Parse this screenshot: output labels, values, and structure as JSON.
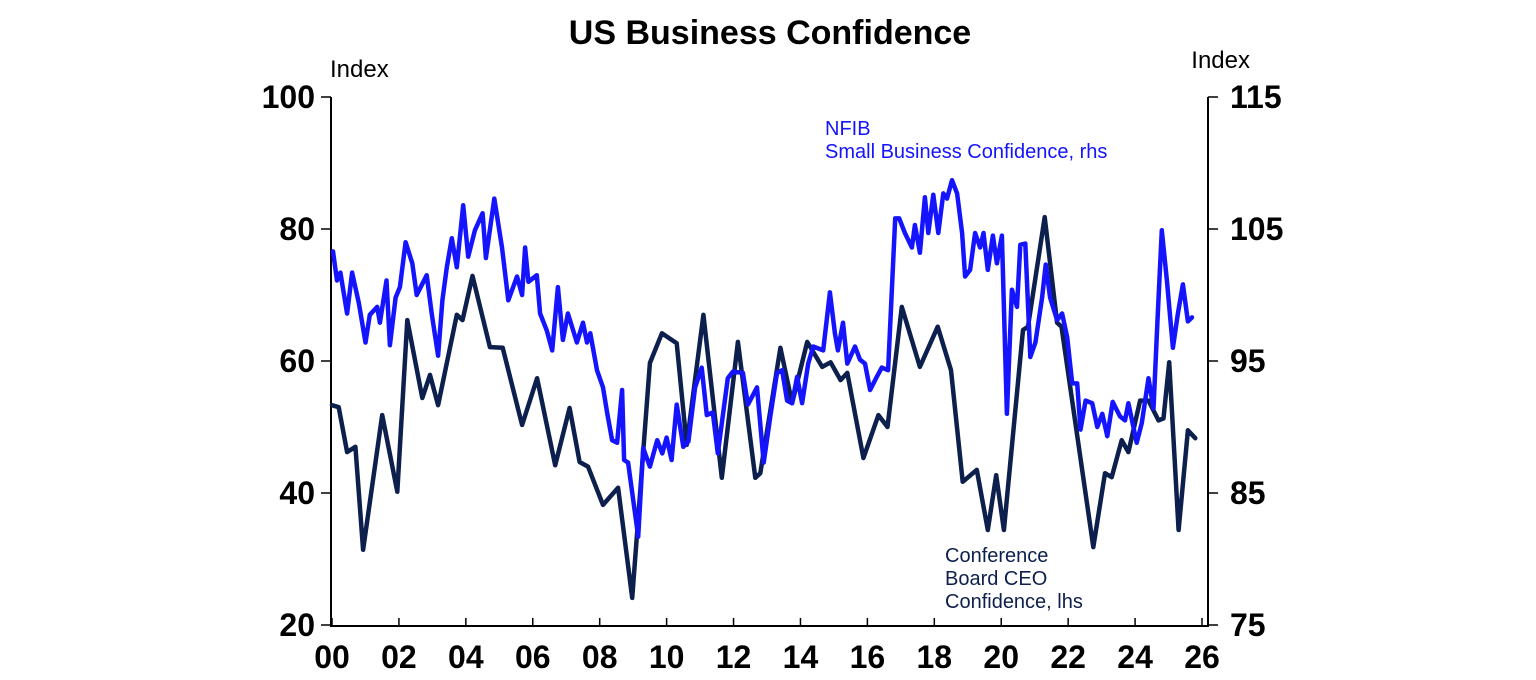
{
  "chart_data": {
    "type": "line",
    "title": "US Business Confidence",
    "ylabel_left": "Index",
    "ylabel_right": "Index",
    "xlim": [
      2000,
      2026
    ],
    "ylim_left": [
      20,
      100
    ],
    "ylim_right": [
      75,
      115
    ],
    "x_ticks": [
      2000,
      2002,
      2004,
      2006,
      2008,
      2010,
      2012,
      2014,
      2016,
      2018,
      2020,
      2022,
      2024,
      2026
    ],
    "x_tick_labels": [
      "00",
      "02",
      "04",
      "06",
      "08",
      "10",
      "12",
      "14",
      "16",
      "18",
      "20",
      "22",
      "24",
      "26"
    ],
    "y_left_ticks": [
      20,
      40,
      60,
      80,
      100
    ],
    "y_right_ticks": [
      75,
      85,
      95,
      105,
      115
    ],
    "grid": false,
    "series": [
      {
        "name": "NFIB Small Business Confidence, rhs",
        "label_lines": [
          "NFIB",
          "Small Business Confidence, rhs"
        ],
        "axis": "right",
        "color": "#1414ff",
        "points": [
          [
            2000.03,
            103.3
          ],
          [
            2000.15,
            101.1
          ],
          [
            2000.25,
            101.7
          ],
          [
            2000.45,
            98.6
          ],
          [
            2000.6,
            101.7
          ],
          [
            2000.8,
            99.4
          ],
          [
            2001.0,
            96.4
          ],
          [
            2001.13,
            98.5
          ],
          [
            2001.35,
            99.1
          ],
          [
            2001.43,
            97.9
          ],
          [
            2001.63,
            101.1
          ],
          [
            2001.73,
            96.2
          ],
          [
            2001.9,
            99.8
          ],
          [
            2002.03,
            100.6
          ],
          [
            2002.2,
            104.0
          ],
          [
            2002.4,
            102.4
          ],
          [
            2002.53,
            100.0
          ],
          [
            2002.83,
            101.5
          ],
          [
            2002.98,
            98.6
          ],
          [
            2003.17,
            95.4
          ],
          [
            2003.3,
            99.6
          ],
          [
            2003.43,
            102.1
          ],
          [
            2003.58,
            104.3
          ],
          [
            2003.73,
            102.1
          ],
          [
            2003.92,
            106.8
          ],
          [
            2004.07,
            102.9
          ],
          [
            2004.27,
            104.9
          ],
          [
            2004.5,
            106.2
          ],
          [
            2004.6,
            102.8
          ],
          [
            2004.85,
            107.3
          ],
          [
            2005.08,
            103.6
          ],
          [
            2005.27,
            99.6
          ],
          [
            2005.53,
            101.4
          ],
          [
            2005.68,
            100.0
          ],
          [
            2005.77,
            103.6
          ],
          [
            2005.87,
            101.0
          ],
          [
            2006.12,
            101.5
          ],
          [
            2006.22,
            98.6
          ],
          [
            2006.42,
            97.3
          ],
          [
            2006.58,
            95.8
          ],
          [
            2006.75,
            100.6
          ],
          [
            2006.9,
            96.6
          ],
          [
            2007.05,
            98.6
          ],
          [
            2007.32,
            96.4
          ],
          [
            2007.5,
            97.9
          ],
          [
            2007.62,
            96.4
          ],
          [
            2007.72,
            97.1
          ],
          [
            2007.92,
            94.3
          ],
          [
            2008.1,
            93.0
          ],
          [
            2008.22,
            91.1
          ],
          [
            2008.37,
            89.0
          ],
          [
            2008.52,
            88.8
          ],
          [
            2008.67,
            92.8
          ],
          [
            2008.73,
            87.5
          ],
          [
            2008.85,
            87.3
          ],
          [
            2009.15,
            81.7
          ],
          [
            2009.3,
            88.4
          ],
          [
            2009.5,
            87.0
          ],
          [
            2009.72,
            89.0
          ],
          [
            2009.87,
            88.0
          ],
          [
            2010.0,
            89.2
          ],
          [
            2010.15,
            87.5
          ],
          [
            2010.3,
            91.7
          ],
          [
            2010.5,
            88.5
          ],
          [
            2010.65,
            88.9
          ],
          [
            2010.85,
            93.0
          ],
          [
            2011.05,
            94.5
          ],
          [
            2011.2,
            90.9
          ],
          [
            2011.38,
            91.1
          ],
          [
            2011.53,
            88.0
          ],
          [
            2011.83,
            93.7
          ],
          [
            2011.98,
            94.2
          ],
          [
            2012.28,
            94.1
          ],
          [
            2012.43,
            91.7
          ],
          [
            2012.7,
            93.0
          ],
          [
            2012.9,
            87.3
          ],
          [
            2013.1,
            90.8
          ],
          [
            2013.3,
            94.1
          ],
          [
            2013.45,
            94.3
          ],
          [
            2013.6,
            92.0
          ],
          [
            2013.75,
            91.8
          ],
          [
            2013.9,
            93.8
          ],
          [
            2014.05,
            91.8
          ],
          [
            2014.23,
            94.8
          ],
          [
            2014.38,
            96.1
          ],
          [
            2014.68,
            95.8
          ],
          [
            2014.88,
            100.2
          ],
          [
            2015.03,
            97.1
          ],
          [
            2015.12,
            95.8
          ],
          [
            2015.27,
            97.9
          ],
          [
            2015.4,
            94.8
          ],
          [
            2015.63,
            96.1
          ],
          [
            2015.78,
            95.1
          ],
          [
            2015.93,
            94.8
          ],
          [
            2016.08,
            92.8
          ],
          [
            2016.28,
            93.8
          ],
          [
            2016.43,
            94.5
          ],
          [
            2016.62,
            94.3
          ],
          [
            2016.83,
            105.8
          ],
          [
            2016.95,
            105.8
          ],
          [
            2017.12,
            104.7
          ],
          [
            2017.33,
            103.6
          ],
          [
            2017.42,
            105.3
          ],
          [
            2017.57,
            103.2
          ],
          [
            2017.72,
            107.4
          ],
          [
            2017.82,
            104.7
          ],
          [
            2017.97,
            107.6
          ],
          [
            2018.12,
            104.7
          ],
          [
            2018.27,
            107.7
          ],
          [
            2018.38,
            107.3
          ],
          [
            2018.53,
            108.7
          ],
          [
            2018.68,
            107.7
          ],
          [
            2018.83,
            104.7
          ],
          [
            2018.92,
            101.4
          ],
          [
            2019.07,
            101.9
          ],
          [
            2019.22,
            104.7
          ],
          [
            2019.37,
            103.6
          ],
          [
            2019.47,
            104.7
          ],
          [
            2019.6,
            101.9
          ],
          [
            2019.75,
            104.5
          ],
          [
            2019.87,
            102.4
          ],
          [
            2020.02,
            104.5
          ],
          [
            2020.17,
            91.0
          ],
          [
            2020.32,
            100.4
          ],
          [
            2020.47,
            99.1
          ],
          [
            2020.57,
            103.8
          ],
          [
            2020.72,
            103.9
          ],
          [
            2020.87,
            95.3
          ],
          [
            2021.02,
            96.4
          ],
          [
            2021.22,
            99.8
          ],
          [
            2021.33,
            102.3
          ],
          [
            2021.46,
            99.8
          ],
          [
            2021.67,
            98.1
          ],
          [
            2021.82,
            98.6
          ],
          [
            2021.97,
            96.8
          ],
          [
            2022.12,
            93.3
          ],
          [
            2022.27,
            93.3
          ],
          [
            2022.37,
            89.8
          ],
          [
            2022.52,
            92.0
          ],
          [
            2022.72,
            91.8
          ],
          [
            2022.87,
            90.0
          ],
          [
            2023.02,
            91.0
          ],
          [
            2023.17,
            89.3
          ],
          [
            2023.33,
            91.9
          ],
          [
            2023.55,
            90.8
          ],
          [
            2023.7,
            90.5
          ],
          [
            2023.8,
            91.8
          ],
          [
            2024.05,
            88.8
          ],
          [
            2024.2,
            90.3
          ],
          [
            2024.4,
            93.7
          ],
          [
            2024.55,
            91.4
          ],
          [
            2024.67,
            98.1
          ],
          [
            2024.8,
            104.9
          ],
          [
            2024.95,
            101.1
          ],
          [
            2025.13,
            96.0
          ],
          [
            2025.28,
            98.6
          ],
          [
            2025.43,
            100.8
          ],
          [
            2025.58,
            98.0
          ],
          [
            2025.7,
            98.3
          ]
        ]
      },
      {
        "name": "Conference Board CEO Confidence, lhs",
        "label_lines": [
          "Conference",
          "Board CEO",
          "Confidence, lhs"
        ],
        "axis": "left",
        "color": "#0d1f4d",
        "points": [
          [
            2000.0,
            53.3
          ],
          [
            2000.2,
            53.0
          ],
          [
            2000.45,
            46.2
          ],
          [
            2000.7,
            47.0
          ],
          [
            2000.93,
            31.4
          ],
          [
            2001.5,
            51.8
          ],
          [
            2001.95,
            40.2
          ],
          [
            2002.25,
            66.2
          ],
          [
            2002.7,
            54.4
          ],
          [
            2002.93,
            57.9
          ],
          [
            2003.17,
            53.3
          ],
          [
            2003.73,
            67.0
          ],
          [
            2003.9,
            66.2
          ],
          [
            2004.2,
            72.9
          ],
          [
            2004.72,
            62.1
          ],
          [
            2005.1,
            62.0
          ],
          [
            2005.68,
            50.3
          ],
          [
            2006.13,
            57.4
          ],
          [
            2006.67,
            44.2
          ],
          [
            2007.1,
            52.9
          ],
          [
            2007.4,
            44.7
          ],
          [
            2007.65,
            44.0
          ],
          [
            2008.1,
            38.2
          ],
          [
            2008.55,
            40.8
          ],
          [
            2008.97,
            24.1
          ],
          [
            2009.5,
            59.7
          ],
          [
            2009.86,
            64.2
          ],
          [
            2010.3,
            62.7
          ],
          [
            2010.6,
            47.3
          ],
          [
            2011.1,
            67.0
          ],
          [
            2011.65,
            42.3
          ],
          [
            2012.13,
            62.9
          ],
          [
            2012.65,
            42.3
          ],
          [
            2012.8,
            43.0
          ],
          [
            2013.4,
            62.0
          ],
          [
            2013.75,
            53.6
          ],
          [
            2014.2,
            62.9
          ],
          [
            2014.65,
            59.1
          ],
          [
            2014.9,
            59.8
          ],
          [
            2015.2,
            57.1
          ],
          [
            2015.4,
            58.2
          ],
          [
            2015.88,
            45.3
          ],
          [
            2016.33,
            51.8
          ],
          [
            2016.6,
            50.0
          ],
          [
            2017.03,
            68.2
          ],
          [
            2017.57,
            59.1
          ],
          [
            2018.1,
            65.2
          ],
          [
            2018.5,
            58.6
          ],
          [
            2018.85,
            41.7
          ],
          [
            2019.27,
            43.5
          ],
          [
            2019.6,
            34.4
          ],
          [
            2019.85,
            42.7
          ],
          [
            2020.08,
            34.4
          ],
          [
            2020.65,
            64.7
          ],
          [
            2020.8,
            65.2
          ],
          [
            2021.3,
            81.8
          ],
          [
            2021.67,
            65.8
          ],
          [
            2021.8,
            65.2
          ],
          [
            2022.75,
            31.8
          ],
          [
            2023.1,
            43.0
          ],
          [
            2023.3,
            42.4
          ],
          [
            2023.6,
            48.0
          ],
          [
            2023.8,
            46.2
          ],
          [
            2024.15,
            54.0
          ],
          [
            2024.4,
            54.0
          ],
          [
            2024.7,
            51.0
          ],
          [
            2024.85,
            51.3
          ],
          [
            2025.02,
            59.8
          ],
          [
            2025.3,
            34.4
          ],
          [
            2025.58,
            49.5
          ],
          [
            2025.8,
            48.3
          ]
        ]
      }
    ]
  }
}
